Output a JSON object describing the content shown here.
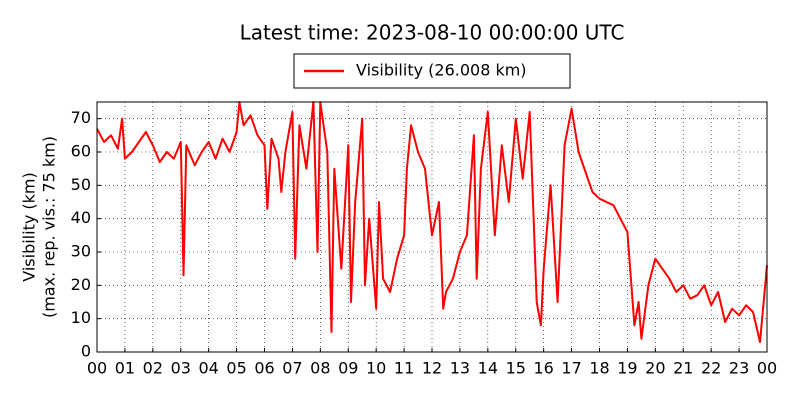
{
  "chart_data": {
    "type": "line",
    "title": "Latest time: 2023-08-10 00:00:00 UTC",
    "ylabel": [
      "Visibility (km)",
      "(max. rep. vis.: 75 km)"
    ],
    "legend": "upper center",
    "grid": true,
    "x": [
      0,
      0.25,
      0.5,
      0.75,
      0.9,
      1.0,
      1.25,
      1.5,
      1.75,
      2.0,
      2.25,
      2.5,
      2.75,
      3.0,
      3.1,
      3.2,
      3.5,
      3.75,
      4.0,
      4.25,
      4.5,
      4.75,
      5.0,
      5.1,
      5.25,
      5.5,
      5.75,
      6.0,
      6.1,
      6.25,
      6.5,
      6.6,
      6.75,
      7.0,
      7.1,
      7.25,
      7.5,
      7.75,
      7.9,
      8.0,
      8.25,
      8.4,
      8.5,
      8.75,
      9.0,
      9.1,
      9.25,
      9.5,
      9.6,
      9.75,
      10.0,
      10.1,
      10.25,
      10.5,
      10.75,
      11.0,
      11.1,
      11.25,
      11.5,
      11.75,
      12.0,
      12.25,
      12.4,
      12.5,
      12.75,
      13.0,
      13.25,
      13.5,
      13.6,
      13.75,
      14.0,
      14.25,
      14.5,
      14.75,
      15.0,
      15.25,
      15.5,
      15.75,
      15.9,
      16.0,
      16.25,
      16.5,
      16.75,
      17.0,
      17.25,
      17.5,
      17.75,
      18.0,
      18.25,
      18.5,
      18.75,
      19.0,
      19.25,
      19.4,
      19.5,
      19.75,
      20.0,
      20.25,
      20.5,
      20.75,
      21.0,
      21.25,
      21.5,
      21.75,
      22.0,
      22.25,
      22.5,
      22.75,
      23.0,
      23.25,
      23.5,
      23.75,
      24.0
    ],
    "series": [
      {
        "name": "Visibility (26.008 km)",
        "color": "#ff0000",
        "values": [
          67,
          63,
          65,
          61,
          70,
          58,
          60,
          63,
          66,
          62,
          57,
          60,
          58,
          63,
          23,
          62,
          56,
          60,
          63,
          58,
          64,
          60,
          66,
          75,
          68,
          71,
          65,
          62,
          43,
          64,
          58,
          48,
          60,
          72,
          28,
          68,
          55,
          75,
          30,
          75,
          60,
          6,
          55,
          25,
          62,
          15,
          45,
          70,
          20,
          40,
          13,
          45,
          22,
          18,
          28,
          35,
          55,
          68,
          60,
          55,
          35,
          45,
          13,
          18,
          22,
          30,
          35,
          65,
          22,
          55,
          72,
          35,
          62,
          45,
          70,
          52,
          72,
          15,
          8,
          25,
          50,
          15,
          62,
          73,
          60,
          54,
          48,
          46,
          45,
          44,
          40,
          36,
          8,
          15,
          4,
          20,
          28,
          25,
          22,
          18,
          20,
          16,
          17,
          20,
          14,
          18,
          9,
          13,
          11,
          14,
          12,
          3,
          26
        ]
      }
    ],
    "xlim": [
      0,
      24
    ],
    "xticks": [
      {
        "value": 0,
        "label": "00"
      },
      {
        "value": 1,
        "label": "01"
      },
      {
        "value": 2,
        "label": "02"
      },
      {
        "value": 3,
        "label": "03"
      },
      {
        "value": 4,
        "label": "04"
      },
      {
        "value": 5,
        "label": "05"
      },
      {
        "value": 6,
        "label": "06"
      },
      {
        "value": 7,
        "label": "07"
      },
      {
        "value": 8,
        "label": "08"
      },
      {
        "value": 9,
        "label": "09"
      },
      {
        "value": 10,
        "label": "10"
      },
      {
        "value": 11,
        "label": "11"
      },
      {
        "value": 12,
        "label": "12"
      },
      {
        "value": 13,
        "label": "13"
      },
      {
        "value": 14,
        "label": "14"
      },
      {
        "value": 15,
        "label": "15"
      },
      {
        "value": 16,
        "label": "16"
      },
      {
        "value": 17,
        "label": "17"
      },
      {
        "value": 18,
        "label": "18"
      },
      {
        "value": 19,
        "label": "19"
      },
      {
        "value": 20,
        "label": "20"
      },
      {
        "value": 21,
        "label": "21"
      },
      {
        "value": 22,
        "label": "22"
      },
      {
        "value": 23,
        "label": "23"
      },
      {
        "value": 24,
        "label": "00"
      }
    ],
    "ylim": [
      0,
      75
    ],
    "yticks": [
      0,
      10,
      20,
      30,
      40,
      50,
      60,
      70
    ]
  }
}
